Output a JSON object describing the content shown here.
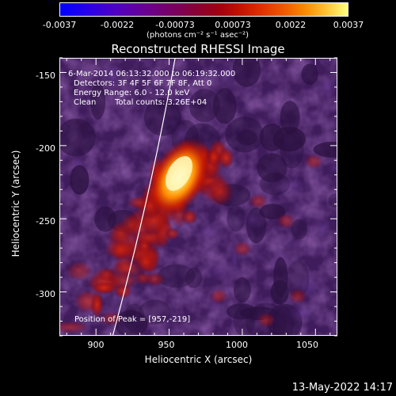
{
  "colorbar": {
    "ticks": [
      "-0.0037",
      "-0.0022",
      "-0.00073",
      "0.00073",
      "0.0022",
      "0.0037"
    ],
    "units": "(photons cm⁻² s⁻¹ asec⁻²)"
  },
  "title": "Reconstructed RHESSI Image",
  "annotations": {
    "time_range": "6-Mar-2014 06:13:32.000 to 06:19:32.000",
    "detectors": "Detectors: 3F 4F 5F 6F 7F 8F, Att 0",
    "energy": "Energy Range: 6.0 - 12.0 keV",
    "clean": "Clean",
    "total_counts": "Total counts: 3.26E+04",
    "peak": "Position of Peak = [957,-219]"
  },
  "axes": {
    "xlabel": "Heliocentric X (arcsec)",
    "ylabel": "Heliocentric Y (arcsec)",
    "x_ticks": [
      "900",
      "950",
      "1000",
      "1050"
    ],
    "y_ticks": [
      "-150",
      "-200",
      "-250",
      "-300"
    ],
    "xlim": [
      875,
      1065
    ],
    "ylim": [
      -330,
      -140
    ]
  },
  "footer": {
    "timestamp": "13-May-2022 14:17"
  },
  "colors": {
    "background": "#000000",
    "foreground": "#ffffff",
    "image_low": "#4a1f6e",
    "image_peak": "#fff2a0"
  },
  "chart_data": {
    "type": "heatmap",
    "title": "Reconstructed RHESSI Image",
    "xlabel": "Heliocentric X (arcsec)",
    "ylabel": "Heliocentric Y (arcsec)",
    "xlim": [
      875,
      1065
    ],
    "ylim": [
      -330,
      -140
    ],
    "x_ticks": [
      900,
      950,
      1000,
      1050
    ],
    "y_ticks": [
      -150,
      -200,
      -250,
      -300
    ],
    "colorbar_range": [
      -0.0037,
      0.0037
    ],
    "peak": [
      957,
      -219
    ]
  }
}
